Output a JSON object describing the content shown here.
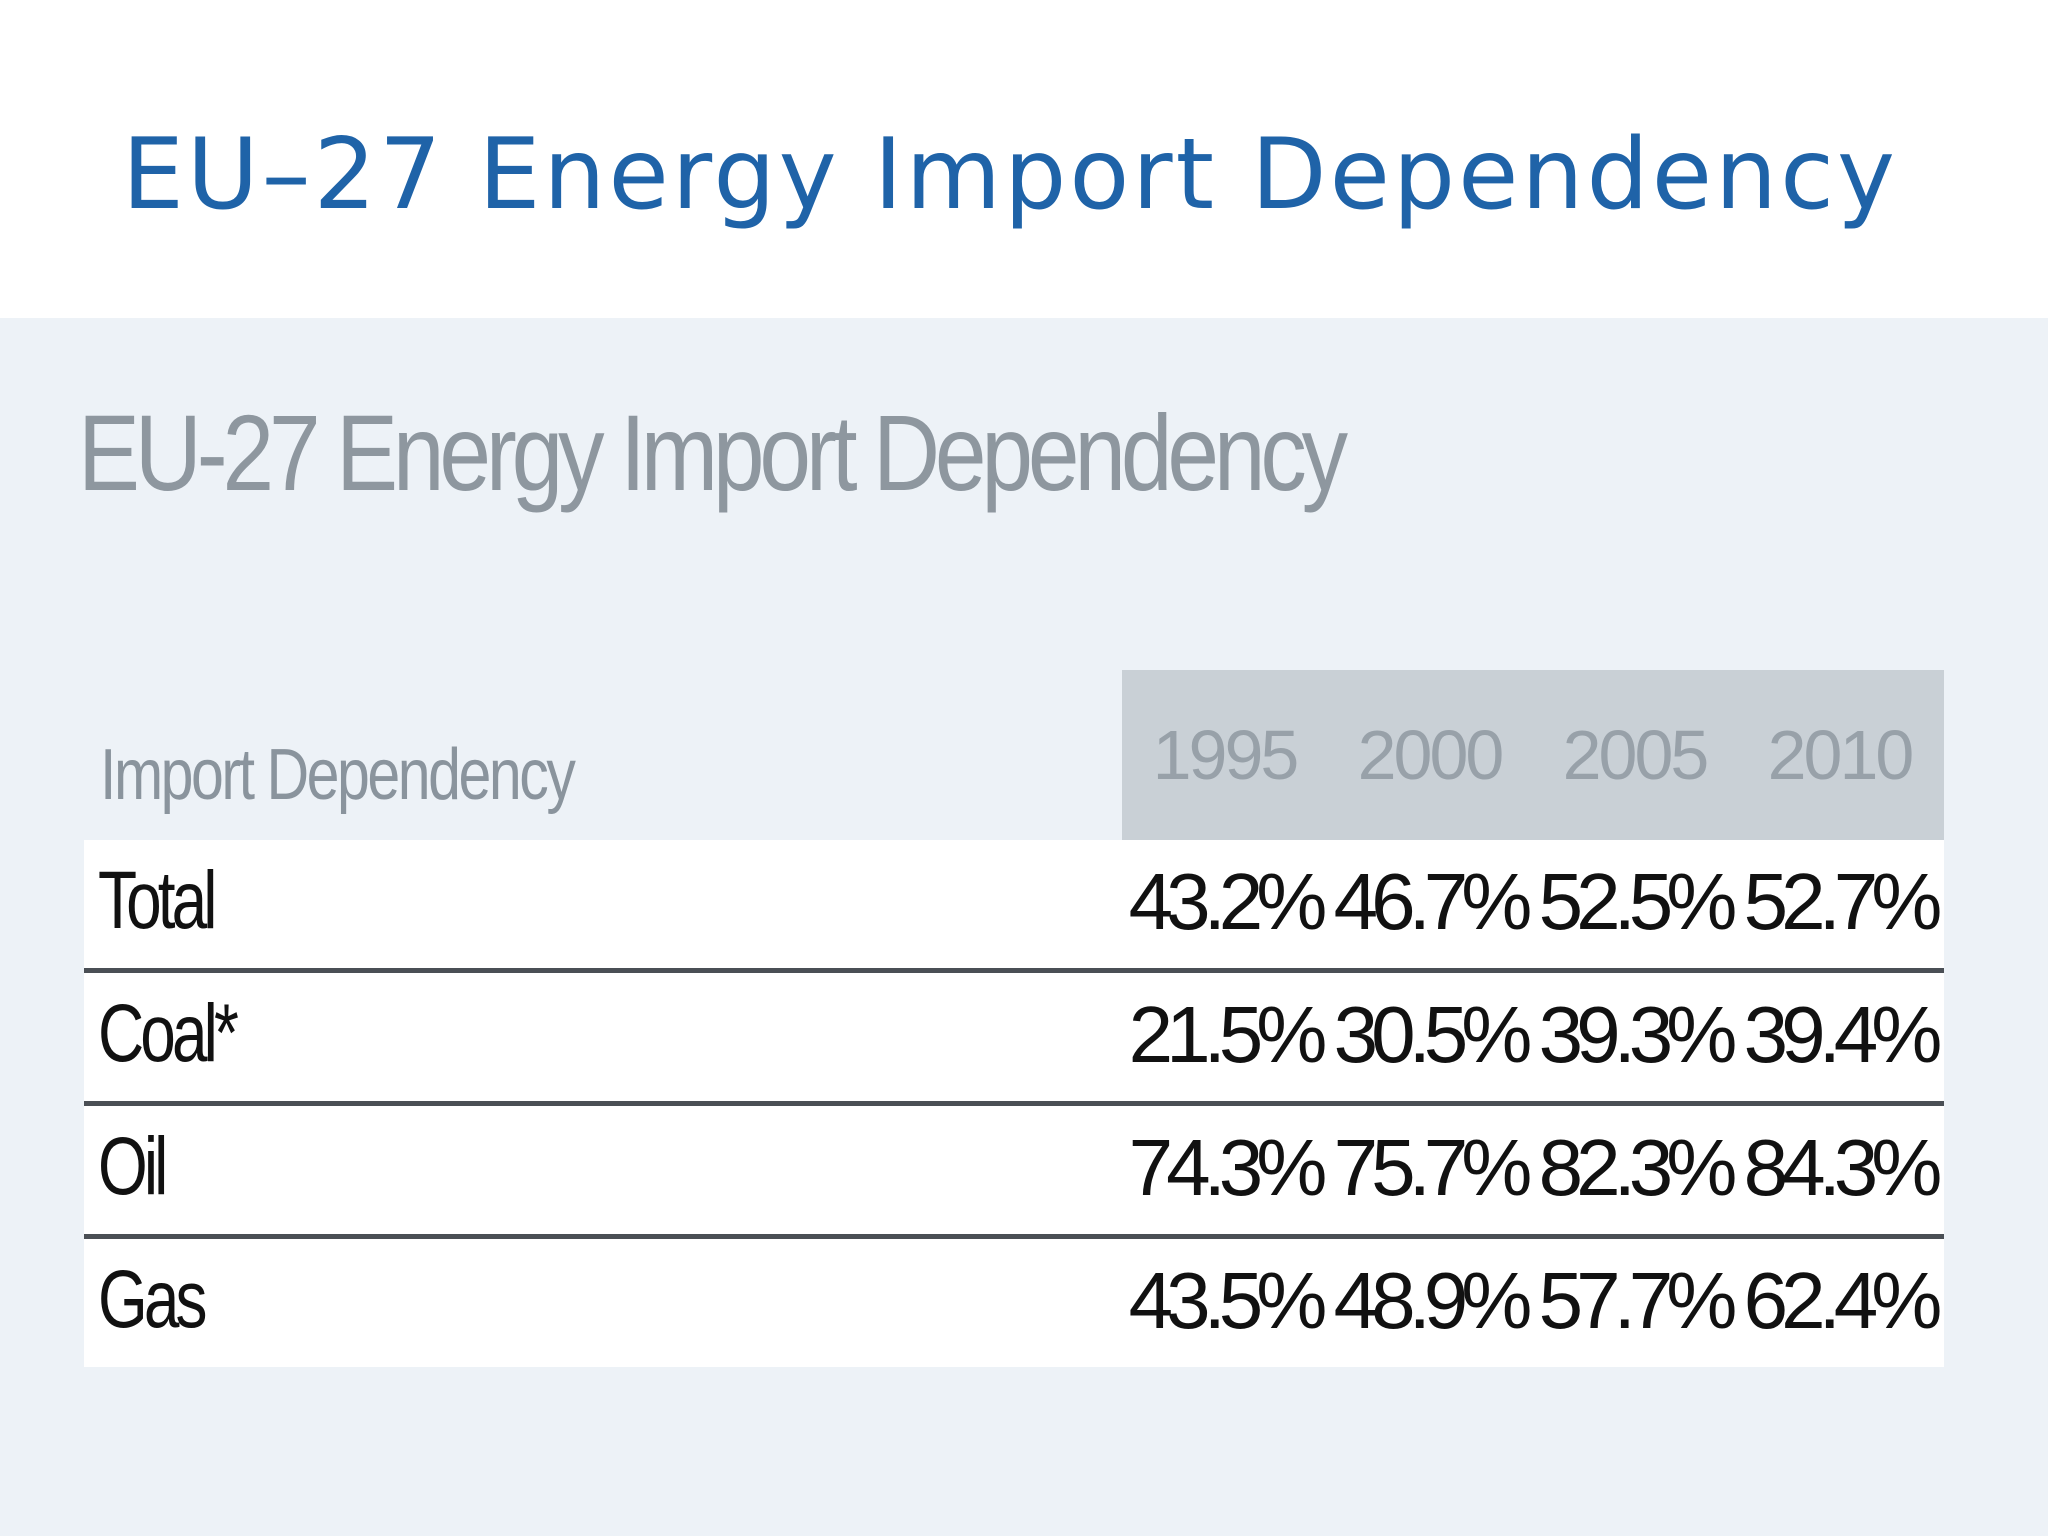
{
  "slide": {
    "title": "EU–27 Energy Import Dependency"
  },
  "chart_data": {
    "type": "table",
    "title": "EU-27 Energy Import Dependency",
    "header_label": "Import Dependency",
    "columns": [
      "1995",
      "2000",
      "2005",
      "2010"
    ],
    "rows": [
      {
        "label": "Total",
        "values": [
          "43.2%",
          "46.7%",
          "52.5%",
          "52.7%"
        ]
      },
      {
        "label": "Coal*",
        "values": [
          "21.5%",
          "30.5%",
          "39.3%",
          "39.4%"
        ]
      },
      {
        "label": "Oil",
        "values": [
          "74.3%",
          "75.7%",
          "82.3%",
          "84.3%"
        ]
      },
      {
        "label": "Gas",
        "values": [
          "43.5%",
          "48.9%",
          "57.7%",
          "62.4%"
        ]
      }
    ]
  },
  "colors": {
    "title": "#1f63a8",
    "panel_background": "#edf2f7",
    "header_band": "#c9d0d6",
    "row_divider": "#4a4f55"
  }
}
